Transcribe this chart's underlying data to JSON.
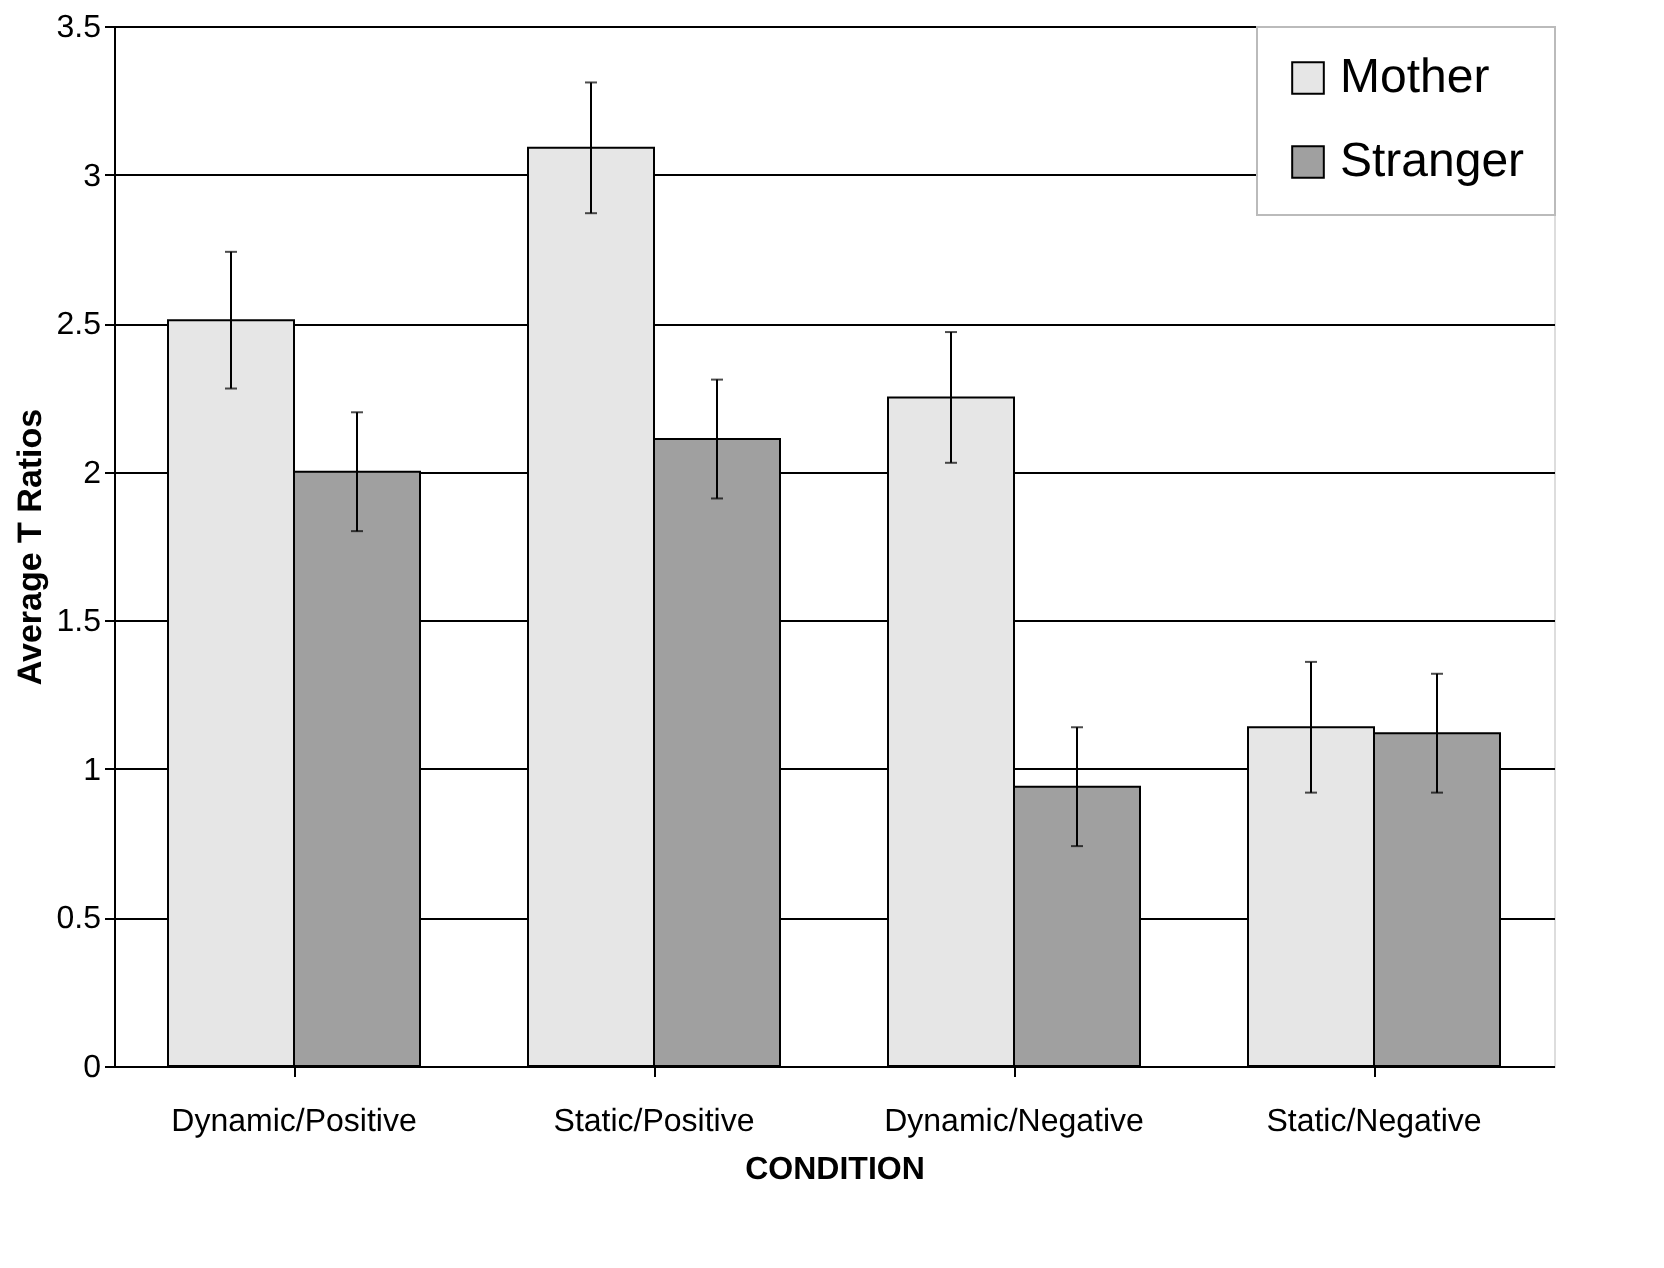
{
  "chart_data": {
    "type": "bar",
    "xlabel": "CONDITION",
    "ylabel": "Average T Ratios",
    "categories": [
      "Dynamic/Positive",
      "Static/Positive",
      "Dynamic/Negative",
      "Static/Negative"
    ],
    "series": [
      {
        "name": "Mother",
        "color": "#e6e6e6",
        "values": [
          2.51,
          3.09,
          2.25,
          1.14
        ],
        "errors": [
          0.23,
          0.22,
          0.22,
          0.22
        ]
      },
      {
        "name": "Stranger",
        "color": "#a0a0a0",
        "values": [
          2.0,
          2.11,
          0.94,
          1.12
        ],
        "errors": [
          0.2,
          0.2,
          0.2,
          0.2
        ]
      }
    ],
    "ylim": [
      0,
      3.5
    ],
    "yticks": [
      0,
      0.5,
      1,
      1.5,
      2,
      2.5,
      3,
      3.5
    ],
    "grid": "y",
    "legend": "top right"
  }
}
